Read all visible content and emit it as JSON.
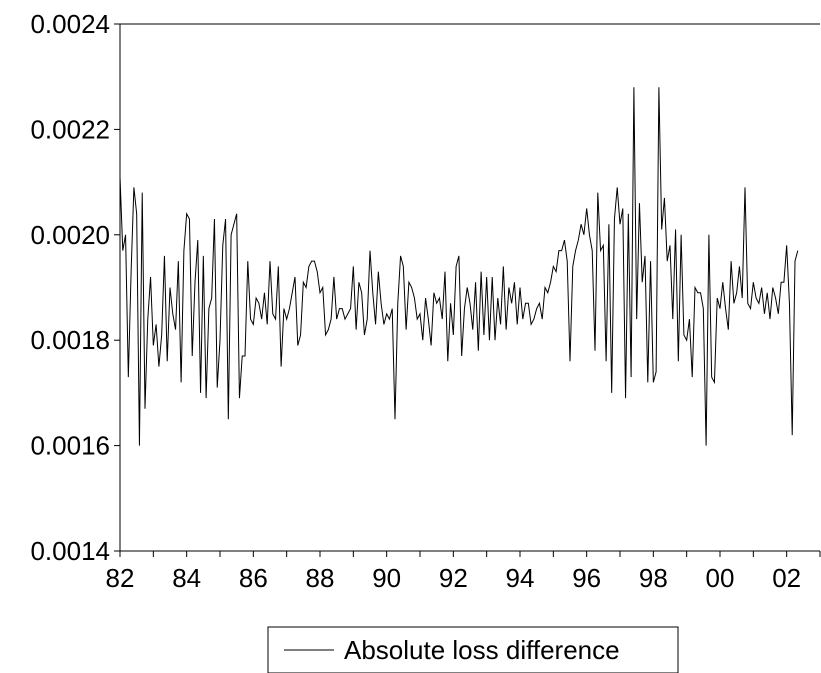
{
  "chart_data": {
    "type": "line",
    "title": "",
    "xlabel": "",
    "ylabel": "",
    "ylim": [
      0.0014,
      0.0024
    ],
    "xlim": [
      1982,
      2003
    ],
    "y_ticks": [
      0.0014,
      0.0016,
      0.0018,
      0.002,
      0.0022,
      0.0024
    ],
    "y_tick_labels": [
      "0.0014",
      "0.0016",
      "0.0018",
      "0.0020",
      "0.0022",
      "0.0024"
    ],
    "x_tick_labels": [
      "82",
      "84",
      "86",
      "88",
      "90",
      "92",
      "94",
      "96",
      "98",
      "00",
      "02"
    ],
    "x_tick_years": [
      1982,
      1984,
      1986,
      1988,
      1990,
      1992,
      1994,
      1996,
      1998,
      2000,
      2002
    ],
    "grid": false,
    "legend": {
      "position": "bottom",
      "entries": [
        "Absolute loss difference"
      ]
    },
    "series": [
      {
        "name": "Absolute loss difference",
        "color": "#000000",
        "x_start": 1982.0,
        "x_step": 0.0833333,
        "values": [
          0.00211,
          0.00197,
          0.002,
          0.00173,
          0.00193,
          0.00209,
          0.00204,
          0.0016,
          0.00208,
          0.00167,
          0.00184,
          0.00192,
          0.00179,
          0.00183,
          0.00175,
          0.00181,
          0.00196,
          0.00176,
          0.0019,
          0.00185,
          0.00182,
          0.00195,
          0.00172,
          0.00197,
          0.00204,
          0.00203,
          0.00177,
          0.00191,
          0.00199,
          0.0017,
          0.00196,
          0.00169,
          0.00186,
          0.00188,
          0.00203,
          0.00171,
          0.0018,
          0.00198,
          0.00203,
          0.00165,
          0.002,
          0.00202,
          0.00204,
          0.00169,
          0.00177,
          0.00177,
          0.00195,
          0.00184,
          0.00183,
          0.00188,
          0.00187,
          0.00184,
          0.00189,
          0.00183,
          0.00195,
          0.00185,
          0.00184,
          0.00194,
          0.00175,
          0.00186,
          0.00184,
          0.00186,
          0.00189,
          0.00192,
          0.00179,
          0.00181,
          0.00191,
          0.0019,
          0.00194,
          0.00195,
          0.00195,
          0.00193,
          0.00189,
          0.0019,
          0.00181,
          0.00182,
          0.00184,
          0.00192,
          0.00184,
          0.00186,
          0.00186,
          0.00184,
          0.00185,
          0.00186,
          0.00194,
          0.00182,
          0.00191,
          0.00189,
          0.00181,
          0.00184,
          0.00197,
          0.00189,
          0.00183,
          0.00193,
          0.00187,
          0.00183,
          0.00185,
          0.00184,
          0.00186,
          0.00165,
          0.00187,
          0.00196,
          0.00194,
          0.00182,
          0.00191,
          0.0019,
          0.00188,
          0.00184,
          0.00185,
          0.0018,
          0.00188,
          0.00184,
          0.00179,
          0.00189,
          0.00187,
          0.00188,
          0.00184,
          0.00193,
          0.00176,
          0.00187,
          0.00181,
          0.00194,
          0.00196,
          0.00177,
          0.00186,
          0.0019,
          0.00187,
          0.00182,
          0.00191,
          0.00178,
          0.00193,
          0.00181,
          0.00192,
          0.0018,
          0.00192,
          0.0018,
          0.00188,
          0.00183,
          0.00194,
          0.00182,
          0.0019,
          0.00187,
          0.00191,
          0.00183,
          0.0019,
          0.00184,
          0.00187,
          0.00187,
          0.00183,
          0.00184,
          0.00186,
          0.00187,
          0.00184,
          0.0019,
          0.00189,
          0.00191,
          0.00194,
          0.00193,
          0.00197,
          0.00197,
          0.00199,
          0.00195,
          0.00176,
          0.00194,
          0.00197,
          0.00199,
          0.00202,
          0.002,
          0.00205,
          0.002,
          0.00197,
          0.00178,
          0.00208,
          0.00197,
          0.00198,
          0.00176,
          0.00202,
          0.0017,
          0.00203,
          0.00209,
          0.00202,
          0.00205,
          0.00169,
          0.00204,
          0.00173,
          0.00228,
          0.00184,
          0.00206,
          0.00191,
          0.00196,
          0.00172,
          0.00195,
          0.00172,
          0.00174,
          0.00228,
          0.00201,
          0.00207,
          0.00195,
          0.00198,
          0.00184,
          0.00201,
          0.00176,
          0.002,
          0.00181,
          0.0018,
          0.00184,
          0.00173,
          0.0019,
          0.00189,
          0.00189,
          0.00186,
          0.0016,
          0.002,
          0.00173,
          0.00172,
          0.00188,
          0.00186,
          0.00191,
          0.00186,
          0.00182,
          0.00195,
          0.00187,
          0.00189,
          0.00194,
          0.00188,
          0.00209,
          0.00187,
          0.00186,
          0.00191,
          0.00188,
          0.00187,
          0.0019,
          0.00185,
          0.00189,
          0.00184,
          0.0019,
          0.00188,
          0.00185,
          0.00191,
          0.00191,
          0.00198,
          0.00187,
          0.00162,
          0.00195,
          0.00197
        ]
      }
    ]
  }
}
